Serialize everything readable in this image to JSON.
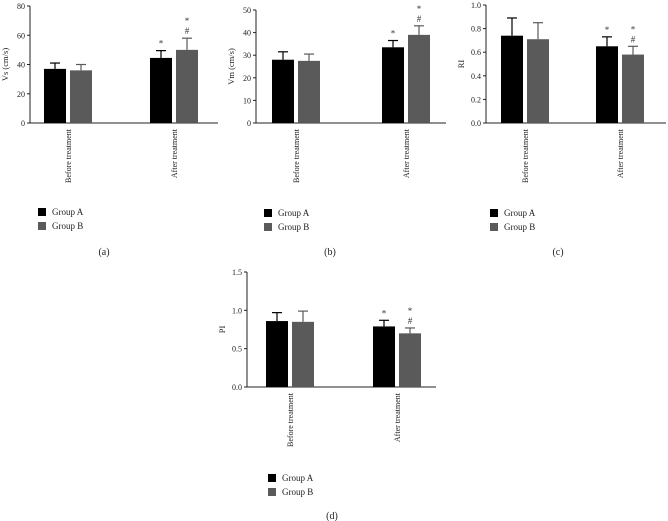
{
  "chart_data": [
    {
      "type": "bar",
      "panel_label": "(a)",
      "ylabel": "Vs (cm/s)",
      "ylim": [
        0,
        80
      ],
      "yticks": [
        "0",
        "20",
        "40",
        "60",
        "80"
      ],
      "categories": [
        "Before treatment",
        "After treatment"
      ],
      "series": [
        {
          "name": "Group A",
          "values": [
            37,
            44.5
          ],
          "errors": [
            4,
            5
          ],
          "color": "#000000"
        },
        {
          "name": "Group B",
          "values": [
            36,
            50
          ],
          "errors": [
            4,
            8
          ],
          "color": "#5a5a5a"
        }
      ],
      "annotations": [
        {
          "category": 1,
          "series": 0,
          "lines": [
            "*"
          ]
        },
        {
          "category": 1,
          "series": 1,
          "lines": [
            "*",
            "#"
          ]
        }
      ],
      "legend": "bottom-left"
    },
    {
      "type": "bar",
      "panel_label": "(b)",
      "ylabel": "Vm (cm/s)",
      "ylim": [
        0,
        50
      ],
      "yticks": [
        "0",
        "10",
        "20",
        "30",
        "40",
        "50"
      ],
      "categories": [
        "Before treatment",
        "After treatment"
      ],
      "series": [
        {
          "name": "Group A",
          "values": [
            28,
            33.5
          ],
          "errors": [
            3.5,
            3
          ],
          "color": "#000000"
        },
        {
          "name": "Group B",
          "values": [
            27.5,
            39
          ],
          "errors": [
            3,
            4
          ],
          "color": "#5a5a5a"
        }
      ],
      "annotations": [
        {
          "category": 1,
          "series": 0,
          "lines": [
            "*"
          ]
        },
        {
          "category": 1,
          "series": 1,
          "lines": [
            "*",
            "#"
          ]
        }
      ],
      "legend": "bottom-left"
    },
    {
      "type": "bar",
      "panel_label": "(c)",
      "ylabel": "RI",
      "ylim": [
        0,
        1.0
      ],
      "yticks": [
        "0.0",
        "0.2",
        "0.4",
        "0.6",
        "0.8",
        "1.0"
      ],
      "categories": [
        "Before treatment",
        "After treatment"
      ],
      "series": [
        {
          "name": "Group A",
          "values": [
            0.74,
            0.65
          ],
          "errors": [
            0.15,
            0.08
          ],
          "color": "#000000"
        },
        {
          "name": "Group B",
          "values": [
            0.71,
            0.58
          ],
          "errors": [
            0.14,
            0.07
          ],
          "color": "#5a5a5a"
        }
      ],
      "annotations": [
        {
          "category": 1,
          "series": 0,
          "lines": [
            "*"
          ]
        },
        {
          "category": 1,
          "series": 1,
          "lines": [
            "*",
            "#"
          ]
        }
      ],
      "legend": "bottom-left"
    },
    {
      "type": "bar",
      "panel_label": "(d)",
      "ylabel": "PI",
      "ylim": [
        0,
        1.5
      ],
      "yticks": [
        "0.0",
        "0.5",
        "1.0",
        "1.5"
      ],
      "categories": [
        "Before treatment",
        "After treatment"
      ],
      "series": [
        {
          "name": "Group A",
          "values": [
            0.86,
            0.79
          ],
          "errors": [
            0.11,
            0.08
          ],
          "color": "#000000"
        },
        {
          "name": "Group B",
          "values": [
            0.85,
            0.7
          ],
          "errors": [
            0.14,
            0.07
          ],
          "color": "#5a5a5a"
        }
      ],
      "annotations": [
        {
          "category": 1,
          "series": 0,
          "lines": [
            "*"
          ]
        },
        {
          "category": 1,
          "series": 1,
          "lines": [
            "*",
            "#"
          ]
        }
      ],
      "legend": "bottom-left"
    }
  ]
}
